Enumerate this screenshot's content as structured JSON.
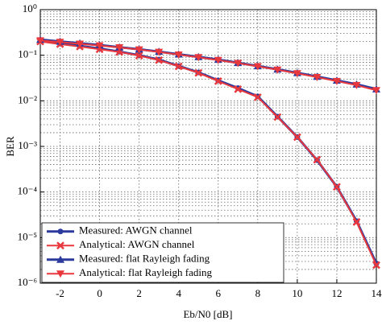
{
  "chart_data": {
    "type": "line",
    "xlabel": "Eb/N0 [dB]",
    "ylabel": "BER",
    "x": [
      -3,
      -2,
      -1,
      0,
      1,
      2,
      3,
      4,
      5,
      6,
      7,
      8,
      9,
      10,
      11,
      12,
      13,
      14
    ],
    "xlim": [
      -3,
      14
    ],
    "xticks": [
      -2,
      0,
      2,
      4,
      6,
      8,
      10,
      12,
      14
    ],
    "ylim": [
      1e-06,
      1
    ],
    "yticks": [
      {
        "value": 1e-06,
        "label": "10⁻⁶"
      },
      {
        "value": 1e-05,
        "label": "10⁻⁵"
      },
      {
        "value": 0.0001,
        "label": "10⁻⁴"
      },
      {
        "value": 0.001,
        "label": "10⁻³"
      },
      {
        "value": 0.01,
        "label": "10⁻²"
      },
      {
        "value": 0.1,
        "label": "10⁻¹"
      },
      {
        "value": 1,
        "label": "10⁰"
      }
    ],
    "log_y": true,
    "grid": true,
    "legend": "lower left",
    "series": [
      {
        "name": "Measured: AWGN channel",
        "color": "#2b3a9c",
        "marker": "circle",
        "values": [
          0.21,
          0.18,
          0.16,
          0.14,
          0.12,
          0.1,
          0.08,
          0.058,
          0.042,
          0.028,
          0.019,
          0.0125,
          0.0045,
          0.0016,
          0.0005,
          0.00013,
          2.3e-05,
          2.7e-06
        ]
      },
      {
        "name": "Analytical: AWGN channel",
        "color": "#e8383d",
        "marker": "x",
        "values": [
          0.2,
          0.175,
          0.155,
          0.135,
          0.118,
          0.098,
          0.078,
          0.057,
          0.041,
          0.027,
          0.018,
          0.012,
          0.0044,
          0.0016,
          0.00051,
          0.00013,
          2.2e-05,
          2.5e-06
        ]
      },
      {
        "name": "Measured: flat Rayleigh fading",
        "color": "#2b3a9c",
        "marker": "triangle-up",
        "values": [
          0.22,
          0.2,
          0.183,
          0.167,
          0.15,
          0.135,
          0.12,
          0.105,
          0.092,
          0.08,
          0.068,
          0.058,
          0.049,
          0.041,
          0.034,
          0.028,
          0.023,
          0.018
        ]
      },
      {
        "name": "Analytical: flat Rayleigh fading",
        "color": "#e8383d",
        "marker": "triangle-down",
        "values": [
          0.21,
          0.195,
          0.178,
          0.163,
          0.148,
          0.133,
          0.118,
          0.103,
          0.09,
          0.078,
          0.067,
          0.057,
          0.048,
          0.04,
          0.033,
          0.027,
          0.022,
          0.017
        ]
      }
    ]
  }
}
